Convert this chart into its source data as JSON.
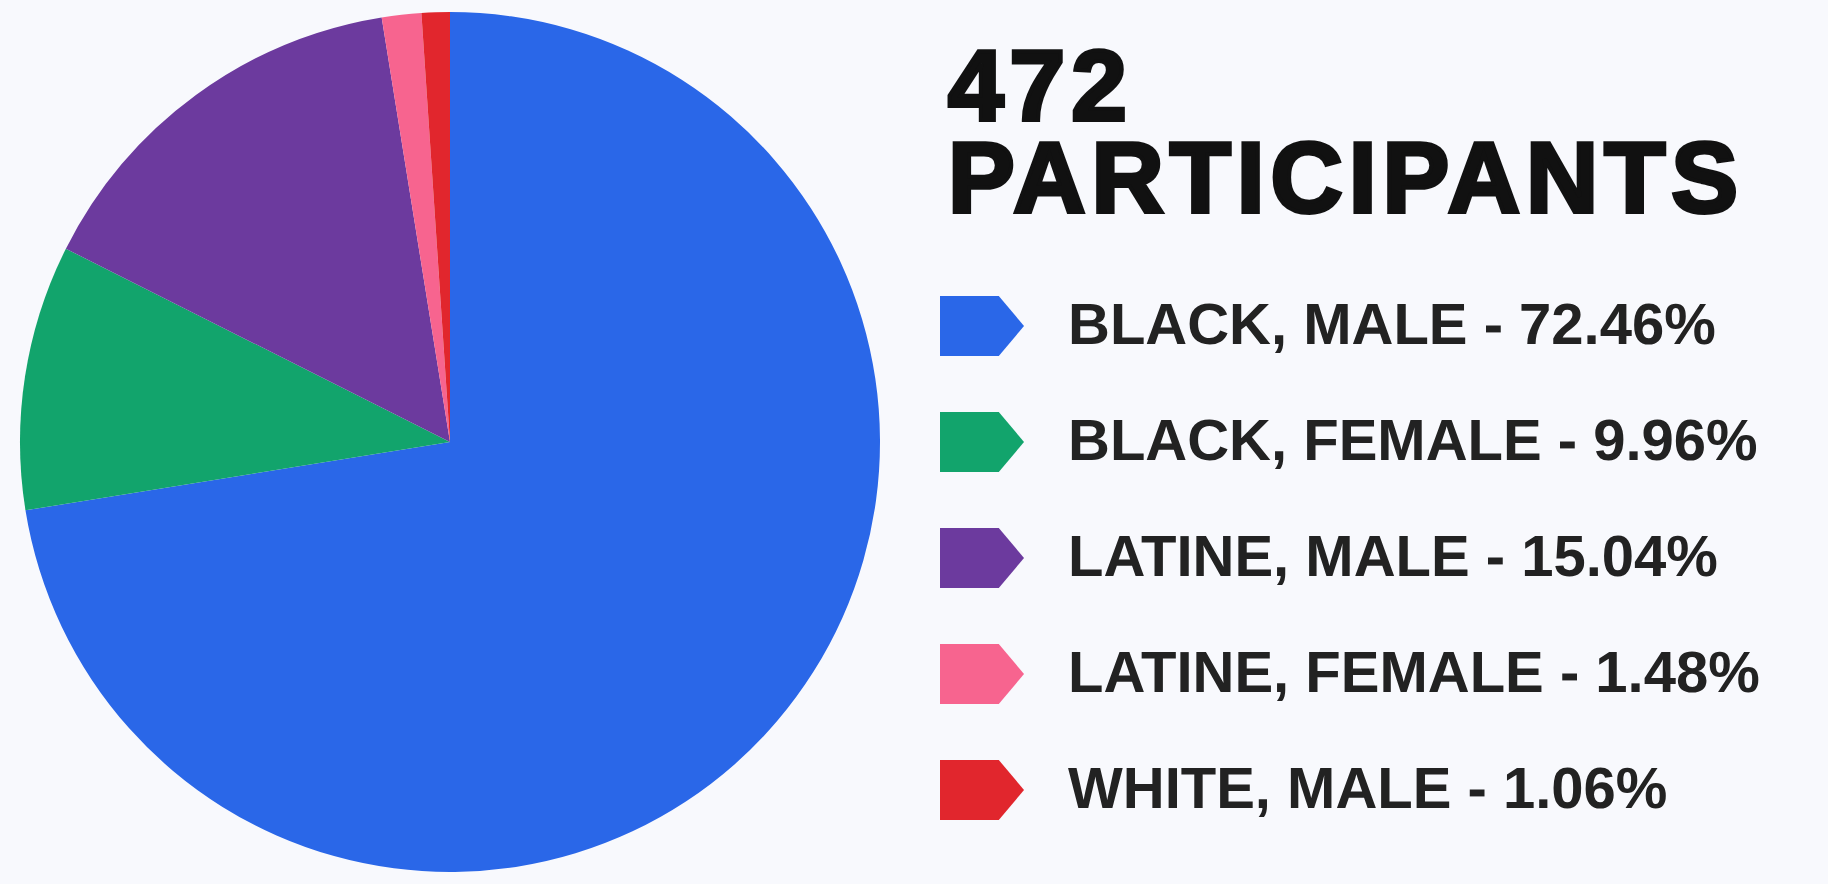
{
  "chart_data": {
    "type": "pie",
    "title": "472\nPARTICIPANTS",
    "categories": [
      "BLACK, MALE - 72.46%",
      "BLACK, FEMALE - 9.96%",
      "LATINE, MALE - 15.04%",
      "LATINE, FEMALE - 1.48%",
      "WHITE, MALE - 1.06%"
    ],
    "values": [
      72.46,
      9.96,
      15.04,
      1.48,
      1.06
    ],
    "colors": [
      "#2a67e8",
      "#12a46c",
      "#6c3a9e",
      "#f7648f",
      "#e1262d"
    ],
    "legend": "right"
  }
}
